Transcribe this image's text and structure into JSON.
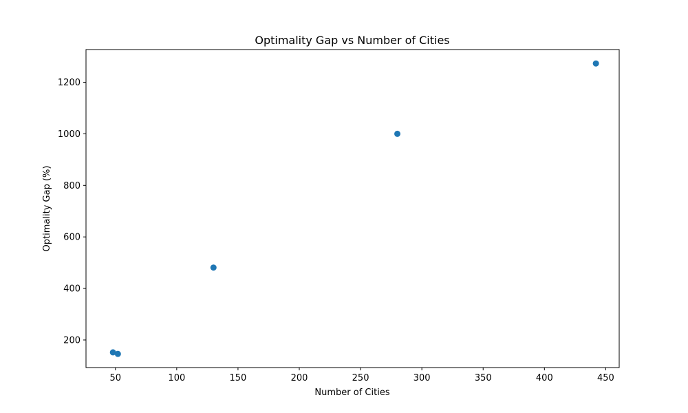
{
  "chart_data": {
    "type": "scatter",
    "title": "Optimality Gap vs Number of Cities",
    "xlabel": "Number of Cities",
    "ylabel": "Optimality Gap (%)",
    "xlim": [
      26,
      461
    ],
    "ylim": [
      93,
      1327
    ],
    "xticks": [
      50,
      100,
      150,
      200,
      250,
      300,
      350,
      400,
      450
    ],
    "yticks": [
      200,
      400,
      600,
      800,
      1000,
      1200
    ],
    "grid": false,
    "marker_color": "#1f77b4",
    "series": [
      {
        "x": [
          48,
          52,
          130,
          280,
          442
        ],
        "y": [
          152,
          146,
          481,
          1000,
          1273
        ]
      }
    ]
  }
}
